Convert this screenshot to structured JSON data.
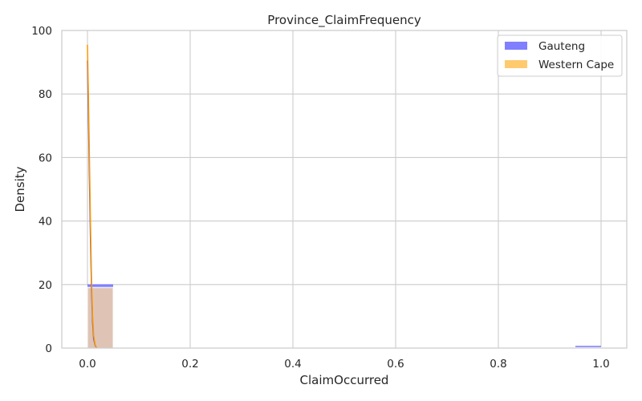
{
  "chart_data": {
    "type": "bar",
    "title": "Province_ClaimFrequency",
    "xlabel": "ClaimOccurred",
    "ylabel": "Density",
    "xlim": [
      -0.05,
      1.05
    ],
    "ylim": [
      0,
      100
    ],
    "xticks": [
      0.0,
      0.2,
      0.4,
      0.6,
      0.8,
      1.0
    ],
    "xtick_labels": [
      "0.0",
      "0.2",
      "0.4",
      "0.6",
      "0.8",
      "1.0"
    ],
    "yticks": [
      0,
      20,
      40,
      60,
      80,
      100
    ],
    "ytick_labels": [
      "0",
      "20",
      "40",
      "60",
      "80",
      "100"
    ],
    "grid": true,
    "legend_position": "top-right",
    "bin_width": 0.05,
    "series": [
      {
        "name": "Gauteng",
        "color": "#7f7fff",
        "line_color": "#4b4bd6",
        "bins": [
          {
            "x": 0.0,
            "density": 19.7
          },
          {
            "x": 0.95,
            "density": 0.3
          }
        ],
        "kde": [
          [
            0.0,
            90.5
          ],
          [
            0.002,
            72
          ],
          [
            0.004,
            52
          ],
          [
            0.006,
            33
          ],
          [
            0.008,
            18
          ],
          [
            0.01,
            8
          ],
          [
            0.012,
            3
          ],
          [
            0.015,
            0.8
          ],
          [
            0.018,
            0
          ]
        ]
      },
      {
        "name": "Western Cape",
        "color": "#ffca6e",
        "line_color": "#ff9900",
        "bins": [
          {
            "x": 0.0,
            "density": 19.0
          },
          {
            "x": 0.95,
            "density": 0.2
          }
        ],
        "kde": [
          [
            0.0,
            95.5
          ],
          [
            0.002,
            78
          ],
          [
            0.004,
            58
          ],
          [
            0.006,
            38
          ],
          [
            0.008,
            21
          ],
          [
            0.01,
            10
          ],
          [
            0.012,
            4
          ],
          [
            0.015,
            1
          ],
          [
            0.018,
            0
          ]
        ]
      }
    ]
  }
}
